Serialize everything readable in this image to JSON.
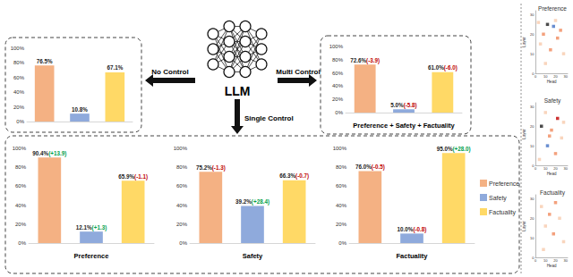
{
  "diagram": {
    "center": {
      "label": "LLM"
    },
    "arrows": {
      "left": "No Control",
      "right": "Multi Control",
      "down": "Single Control"
    },
    "legend": [
      {
        "label": "Preference",
        "color": "#F4B183"
      },
      {
        "label": "Safety",
        "color": "#8FAADC"
      },
      {
        "label": "Factuality",
        "color": "#FFD966"
      }
    ]
  },
  "chart_data": [
    {
      "type": "bar",
      "categories": [
        "Preference",
        "Safety",
        "Factuality"
      ],
      "values": [
        76.5,
        10.8,
        67.1
      ],
      "value_labels": [
        "76.5%",
        "10.8%",
        "67.1%"
      ],
      "colors": [
        "#F4B183",
        "#8FAADC",
        "#FFD966"
      ],
      "ylim": [
        0,
        100
      ],
      "yticks": [
        {
          "value": 0,
          "label": "0%"
        },
        {
          "value": 20,
          "label": "20%"
        },
        {
          "value": 40,
          "label": "40%"
        },
        {
          "value": 60,
          "label": "60%"
        },
        {
          "value": 80,
          "label": "80%"
        },
        {
          "value": 100,
          "label": "100%"
        }
      ],
      "grid": false,
      "data_labels": true,
      "tick_labels": "y"
    },
    {
      "type": "bar",
      "xlabel": "Preference + Safety + Factuality",
      "categories": [
        "Preference",
        "Safety",
        "Factuality"
      ],
      "values": [
        72.6,
        5.0,
        61.0
      ],
      "value_labels": [
        "72.6%(-3.9)",
        "5.0%(-5.8)",
        "61.0%(-6.0)"
      ],
      "colors": [
        "#F4B183",
        "#8FAADC",
        "#FFD966"
      ],
      "ylim": [
        0,
        100
      ],
      "yticks": [
        {
          "value": 0,
          "label": "0%"
        },
        {
          "value": 20,
          "label": "20%"
        },
        {
          "value": 40,
          "label": "40%"
        },
        {
          "value": 60,
          "label": "60%"
        },
        {
          "value": 80,
          "label": "80%"
        },
        {
          "value": 100,
          "label": "100%"
        }
      ],
      "grid": false,
      "data_labels": true,
      "tick_labels": "y"
    },
    {
      "type": "bar",
      "xlabel": "Preference",
      "categories": [
        "Preference",
        "Safety",
        "Factuality"
      ],
      "values": [
        90.4,
        12.1,
        65.9
      ],
      "value_labels": [
        "90.4%(+13.9)",
        "12.1%(+1.3)",
        "65.9%(-1.1)"
      ],
      "colors": [
        "#F4B183",
        "#8FAADC",
        "#FFD966"
      ],
      "ylim": [
        0,
        100
      ],
      "yticks": [
        {
          "value": 0,
          "label": "0%"
        },
        {
          "value": 20,
          "label": "20%"
        },
        {
          "value": 40,
          "label": "40%"
        },
        {
          "value": 60,
          "label": "60%"
        },
        {
          "value": 80,
          "label": "80%"
        },
        {
          "value": 100,
          "label": "100%"
        }
      ],
      "grid": false,
      "data_labels": true,
      "tick_labels": "y"
    },
    {
      "type": "bar",
      "xlabel": "Safety",
      "categories": [
        "Preference",
        "Safety",
        "Factuality"
      ],
      "values": [
        75.2,
        39.2,
        66.3
      ],
      "value_labels": [
        "75.2%(-1.3)",
        "39.2%(+28.4)",
        "66.3%(-0.7)"
      ],
      "colors": [
        "#F4B183",
        "#8FAADC",
        "#FFD966"
      ],
      "ylim": [
        0,
        100
      ],
      "yticks": [
        {
          "value": 0,
          "label": "0%"
        },
        {
          "value": 20,
          "label": "20%"
        },
        {
          "value": 40,
          "label": "40%"
        },
        {
          "value": 60,
          "label": "60%"
        },
        {
          "value": 80,
          "label": "80%"
        },
        {
          "value": 100,
          "label": "100%"
        }
      ],
      "grid": false,
      "data_labels": true,
      "tick_labels": "y"
    },
    {
      "type": "bar",
      "xlabel": "Factuality",
      "categories": [
        "Preference",
        "Safety",
        "Factuality"
      ],
      "values": [
        76.0,
        10.0,
        95.0
      ],
      "value_labels": [
        "76.0%(-0.5)",
        "10.0%(-0.8)",
        "95.0%(+28.0)"
      ],
      "colors": [
        "#F4B183",
        "#8FAADC",
        "#FFD966"
      ],
      "ylim": [
        0,
        100
      ],
      "yticks": [
        {
          "value": 0,
          "label": "0%"
        },
        {
          "value": 20,
          "label": "20%"
        },
        {
          "value": 40,
          "label": "40%"
        },
        {
          "value": 60,
          "label": "60%"
        },
        {
          "value": 80,
          "label": "80%"
        },
        {
          "value": 100,
          "label": "100%"
        }
      ],
      "grid": false,
      "data_labels": true,
      "tick_labels": "y"
    },
    {
      "type": "scatter",
      "title": "Preference",
      "xlabel": "Head",
      "ylabel": "Layer",
      "marker": "square",
      "x": [
        12,
        8,
        20,
        25,
        5,
        15,
        28,
        10,
        22,
        3,
        18
      ],
      "values": [
        25,
        20,
        27,
        22,
        15,
        12,
        10,
        5,
        18,
        26,
        24
      ],
      "colors": [
        "#1F1F1F",
        "#F08A5D",
        "#F8CBAD",
        "#F08A5D",
        "#F8CBAD",
        "#F08A5D",
        "#F8CBAD",
        "#F8CBAD",
        "#F08A5D",
        "#F8CBAD",
        "#4472C4"
      ],
      "xlim": [
        0,
        32
      ],
      "ylim": [
        0,
        32
      ],
      "xticks": [
        0,
        10,
        20,
        30
      ],
      "yticks": [
        0,
        10,
        20,
        30
      ],
      "grid": false
    },
    {
      "type": "scatter",
      "title": "Safety",
      "xlabel": "Head",
      "ylabel": "Layer",
      "marker": "square",
      "x": [
        10,
        22,
        6,
        16,
        26,
        12,
        20,
        4,
        28,
        14
      ],
      "values": [
        27,
        24,
        20,
        18,
        14,
        10,
        6,
        3,
        22,
        15
      ],
      "colors": [
        "#F8CBAD",
        "#C00000",
        "#1F1F1F",
        "#F08A5D",
        "#F8CBAD",
        "#4472C4",
        "#F08A5D",
        "#F8CBAD",
        "#F8CBAD",
        "#F08A5D"
      ],
      "xlim": [
        0,
        32
      ],
      "ylim": [
        0,
        32
      ],
      "xticks": [
        0,
        10,
        20,
        30
      ],
      "yticks": [
        0,
        10,
        20,
        30
      ],
      "grid": false
    },
    {
      "type": "scatter",
      "title": "Factuality",
      "xlabel": "Head",
      "ylabel": "Layer",
      "marker": "square",
      "x": [
        6,
        14,
        24,
        10,
        18,
        28,
        8,
        20
      ],
      "values": [
        26,
        22,
        20,
        16,
        12,
        8,
        4,
        28
      ],
      "colors": [
        "#F8CBAD",
        "#F08A5D",
        "#F8CBAD",
        "#F8CBAD",
        "#F08A5D",
        "#F8CBAD",
        "#F8CBAD",
        "#F08A5D"
      ],
      "xlim": [
        0,
        32
      ],
      "ylim": [
        0,
        32
      ],
      "xticks": [
        0,
        10,
        20,
        30
      ],
      "yticks": [
        0,
        10,
        20,
        30
      ],
      "grid": false
    }
  ]
}
